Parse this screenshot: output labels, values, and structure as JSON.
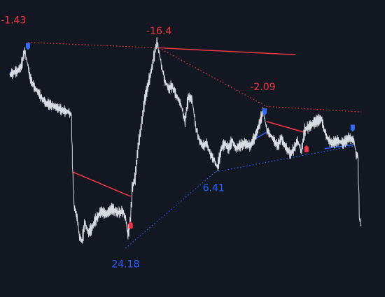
{
  "colors": {
    "background": "#131722",
    "price_line": "#d9dce3",
    "bearish": "#f23645",
    "bullish": "#2962ff",
    "bullish_marker": "#2f6cf5",
    "bearish_marker": "#f23645"
  },
  "chart_data": {
    "type": "line",
    "grid": false,
    "legend": "none",
    "xlabel": "",
    "ylabel": "",
    "xlim": [
      0,
      100
    ],
    "ylim": [
      0,
      100
    ],
    "note_units": "x = bar index (percent of visible range), y = price scale (0 = bottom of view, 100 = top); no axes printed",
    "price_series": [
      [
        0,
        75
      ],
      [
        1,
        76
      ],
      [
        2,
        76.5
      ],
      [
        3,
        78
      ],
      [
        4,
        84
      ],
      [
        4.8,
        79
      ],
      [
        5.5,
        74
      ],
      [
        6.5,
        71
      ],
      [
        7.5,
        69
      ],
      [
        9,
        66
      ],
      [
        10,
        64.5
      ],
      [
        11.5,
        64
      ],
      [
        13,
        63
      ],
      [
        14.5,
        62
      ],
      [
        16,
        61.5
      ],
      [
        16.8,
        60.5
      ],
      [
        17.2,
        40
      ],
      [
        17.6,
        27
      ],
      [
        18.5,
        22
      ],
      [
        19,
        16
      ],
      [
        19.8,
        14
      ],
      [
        20.5,
        21
      ],
      [
        21.5,
        17
      ],
      [
        22.5,
        19
      ],
      [
        23.5,
        22
      ],
      [
        25,
        25
      ],
      [
        26.5,
        24
      ],
      [
        28,
        26
      ],
      [
        29.5,
        24.5
      ],
      [
        31,
        25
      ],
      [
        31.8,
        22
      ],
      [
        32.3,
        16.5
      ],
      [
        33,
        21
      ],
      [
        33.6,
        34
      ],
      [
        34.3,
        37
      ],
      [
        35.2,
        49
      ],
      [
        36,
        56
      ],
      [
        37,
        66
      ],
      [
        38,
        72
      ],
      [
        39,
        78
      ],
      [
        39.8,
        84
      ],
      [
        40.4,
        87
      ],
      [
        41,
        83
      ],
      [
        41.5,
        79
      ],
      [
        42.5,
        73
      ],
      [
        43.5,
        70
      ],
      [
        44.5,
        71
      ],
      [
        45.5,
        68
      ],
      [
        47,
        64
      ],
      [
        48,
        58
      ],
      [
        49,
        67
      ],
      [
        50,
        66
      ],
      [
        51,
        56
      ],
      [
        52,
        51
      ],
      [
        53,
        49
      ],
      [
        54,
        50
      ],
      [
        55,
        46
      ],
      [
        56,
        44
      ],
      [
        57,
        41
      ],
      [
        58,
        48
      ],
      [
        59,
        50
      ],
      [
        60,
        48
      ],
      [
        61,
        51
      ],
      [
        62,
        48
      ],
      [
        63,
        49
      ],
      [
        64.5,
        50
      ],
      [
        66,
        49
      ],
      [
        67.5,
        53
      ],
      [
        68.5,
        57
      ],
      [
        69.5,
        62
      ],
      [
        70.5,
        55
      ],
      [
        71.5,
        53
      ],
      [
        72.5,
        51
      ],
      [
        73.5,
        49
      ],
      [
        74.5,
        52
      ],
      [
        75.5,
        49
      ],
      [
        77,
        46
      ],
      [
        78,
        48
      ],
      [
        79,
        51
      ],
      [
        80,
        47
      ],
      [
        81,
        55
      ],
      [
        82,
        56
      ],
      [
        83,
        57
      ],
      [
        84,
        58
      ],
      [
        85.5,
        59
      ],
      [
        86.5,
        54
      ],
      [
        87.5,
        51
      ],
      [
        88.5,
        50
      ],
      [
        90,
        51
      ],
      [
        91.5,
        50
      ],
      [
        93,
        52
      ],
      [
        94.5,
        51
      ],
      [
        95,
        46
      ],
      [
        95.5,
        45.5
      ],
      [
        96,
        22
      ],
      [
        96.5,
        20
      ]
    ],
    "price_noise": 1.6,
    "pivots": [
      {
        "label": "-1.43",
        "kind": "high",
        "x": 1.0,
        "y": 85.5,
        "label_x": 1.0,
        "label_y": 94
      },
      {
        "label": "-16.4",
        "kind": "high",
        "x": 41.0,
        "y": 84.5,
        "label_x": 41.0,
        "label_y": 90
      },
      {
        "label": "-2.09",
        "kind": "high",
        "x": 70.0,
        "y": 63.5,
        "label_x": 69.5,
        "label_y": 69.5
      },
      {
        "label": "24.18",
        "kind": "low",
        "x": 32.0,
        "y": 11.5,
        "label_x": 31.8,
        "label_y": 4.5
      },
      {
        "label": "6.41",
        "kind": "low",
        "x": 56.5,
        "y": 39.5,
        "label_x": 56.0,
        "label_y": 32.5
      }
    ],
    "trendlines": [
      {
        "name": "",
        "style": "dotted",
        "color": "bearish",
        "points": [
          [
            5.0,
            87
          ],
          [
            41.0,
            85
          ]
        ]
      },
      {
        "name": "",
        "style": "solid",
        "color": "bearish",
        "points": [
          [
            41.0,
            85
          ],
          [
            78.5,
            82.5
          ]
        ]
      },
      {
        "name": "",
        "style": "dotted",
        "color": "bearish",
        "points": [
          [
            41.0,
            85
          ],
          [
            70.5,
            63.5
          ]
        ]
      },
      {
        "name": "",
        "style": "dotted",
        "color": "bearish",
        "points": [
          [
            70.5,
            63.5
          ],
          [
            96.5,
            61.5
          ]
        ]
      },
      {
        "name": "",
        "style": "solid",
        "color": "bearish",
        "points": [
          [
            17.2,
            39.5
          ],
          [
            33.2,
            30.5
          ]
        ]
      },
      {
        "name": "",
        "style": "solid",
        "color": "bearish",
        "points": [
          [
            70.5,
            58
          ],
          [
            81,
            54
          ]
        ]
      },
      {
        "name": "",
        "style": "dotted",
        "color": "bullish",
        "points": [
          [
            31.8,
            11.5
          ],
          [
            56.5,
            39.5
          ]
        ]
      },
      {
        "name": "",
        "style": "dotted",
        "color": "bullish",
        "points": [
          [
            56.5,
            39.5
          ],
          [
            94.5,
            49
          ]
        ]
      },
      {
        "name": "",
        "style": "solid",
        "color": "bullish",
        "points": [
          [
            86.5,
            48
          ],
          [
            94.5,
            49.5
          ]
        ]
      },
      {
        "name": "",
        "style": "solid",
        "color": "bullish",
        "points": [
          [
            0,
            76
          ],
          [
            3.5,
            78
          ]
        ]
      },
      {
        "name": "",
        "style": "solid",
        "color": "bullish",
        "points": [
          [
            66.5,
            51
          ],
          [
            70.5,
            54
          ]
        ]
      }
    ],
    "markers": [
      {
        "kind": "bullish",
        "x": 5.0,
        "y": 85.5
      },
      {
        "kind": "bullish",
        "x": 70.0,
        "y": 61.5
      },
      {
        "kind": "bullish",
        "x": 94.2,
        "y": 55.5
      },
      {
        "kind": "bearish",
        "x": 33.2,
        "y": 20.0
      },
      {
        "kind": "bearish",
        "x": 81.5,
        "y": 48.0
      }
    ]
  }
}
